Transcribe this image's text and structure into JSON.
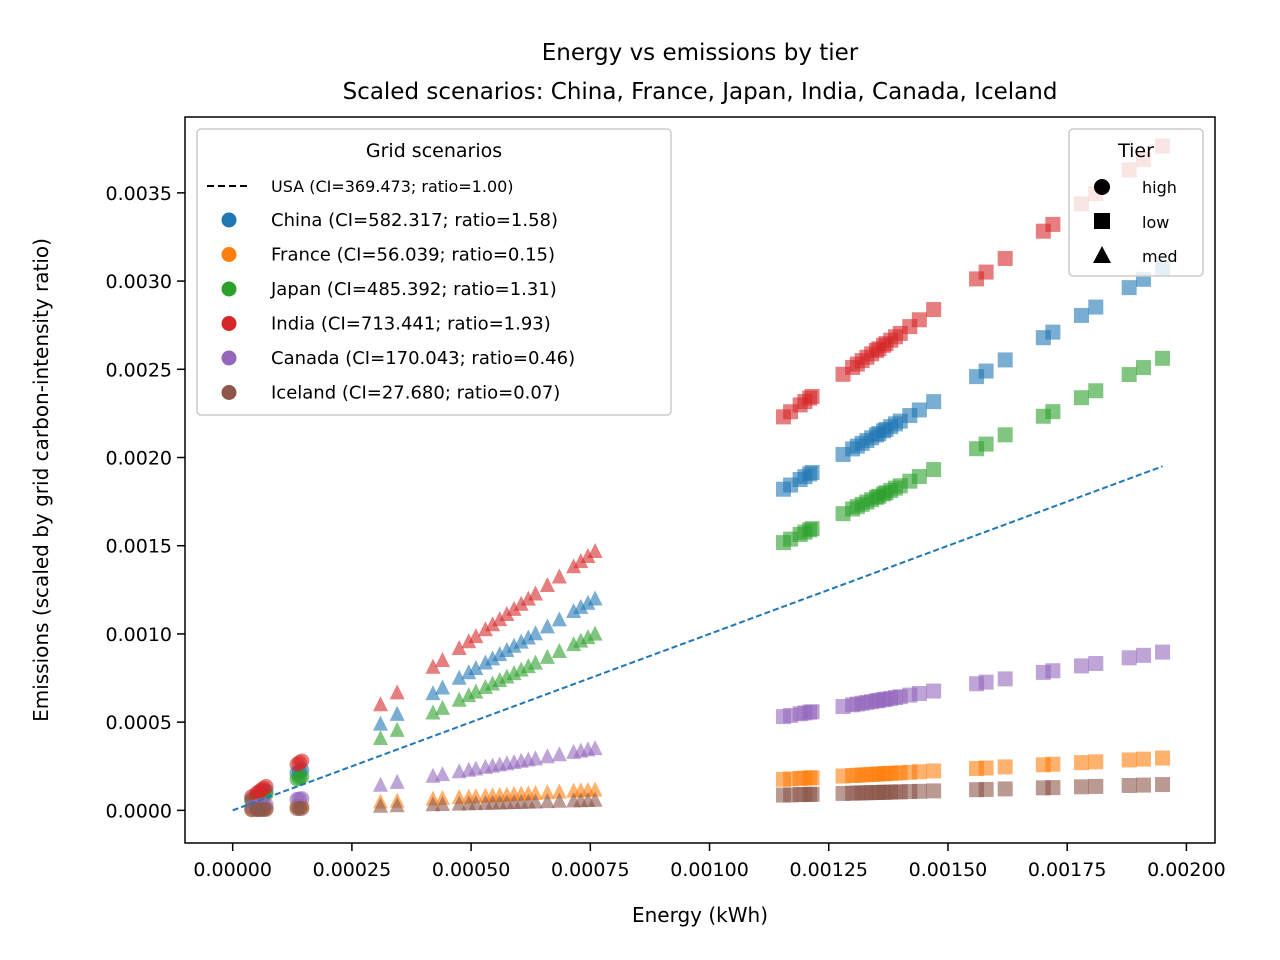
{
  "chart_data": {
    "type": "scatter",
    "title": "Energy vs emissions by tier",
    "subtitle": "Scaled scenarios: China, France, Japan, India, Canada, Iceland",
    "xlabel": "Energy (kWh)",
    "ylabel": "Emissions (scaled by grid carbon-intensity ratio)",
    "xlim": [
      -0.0001,
      0.00206
    ],
    "ylim": [
      -0.000185,
      0.00393
    ],
    "xticks": [
      0.0,
      0.00025,
      0.0005,
      0.00075,
      0.001,
      0.00125,
      0.0015,
      0.00175,
      0.002
    ],
    "xtick_labels": [
      "0.00000",
      "0.00025",
      "0.00050",
      "0.00075",
      "0.00100",
      "0.00125",
      "0.00150",
      "0.00175",
      "0.00200"
    ],
    "yticks": [
      0.0,
      0.0005,
      0.001,
      0.0015,
      0.002,
      0.0025,
      0.003,
      0.0035
    ],
    "ytick_labels": [
      "0.0000",
      "0.0005",
      "0.0010",
      "0.0015",
      "0.0020",
      "0.0025",
      "0.0030",
      "0.0035"
    ],
    "baseline": {
      "name": "USA",
      "legend": "USA (CI=369.473; ratio=1.00)",
      "x": [
        0.0,
        0.00195
      ],
      "y": [
        0.0,
        0.00195
      ],
      "color": "#1f77b4",
      "style": "dashed"
    },
    "series": [
      {
        "name": "China",
        "legend": "China (CI=582.317; ratio=1.58)",
        "ratio": 1.576,
        "color": "#1f77b4"
      },
      {
        "name": "France",
        "legend": "France (CI=56.039; ratio=0.15)",
        "ratio": 0.152,
        "color": "#ff7f0e"
      },
      {
        "name": "Japan",
        "legend": "Japan (CI=485.392; ratio=1.31)",
        "ratio": 1.314,
        "color": "#2ca02c"
      },
      {
        "name": "India",
        "legend": "India (CI=713.441; ratio=1.93)",
        "ratio": 1.931,
        "color": "#d62728"
      },
      {
        "name": "Canada",
        "legend": "Canada (CI=170.043; ratio=0.46)",
        "ratio": 0.46,
        "color": "#9467bd"
      },
      {
        "name": "Iceland",
        "legend": "Iceland (CI=27.680; ratio=0.07)",
        "ratio": 0.075,
        "color": "#8c564b"
      }
    ],
    "tiers": [
      {
        "name": "high",
        "marker": "circle",
        "energy": [
          4e-05,
          5e-05,
          5.5e-05,
          6e-05,
          6.5e-05,
          7e-05,
          0.000135,
          0.00014,
          0.000145
        ]
      },
      {
        "name": "low",
        "marker": "square",
        "energy": [
          0.001155,
          0.00117,
          0.00119,
          0.0012,
          0.00121,
          0.001215,
          0.00128,
          0.0013,
          0.00131,
          0.00132,
          0.00133,
          0.00134,
          0.00135,
          0.001355,
          0.001365,
          0.00137,
          0.00138,
          0.00139,
          0.0014,
          0.00142,
          0.00144,
          0.00147,
          0.00156,
          0.00158,
          0.00162,
          0.0017,
          0.00172,
          0.00178,
          0.00181,
          0.00188,
          0.00191,
          0.00195
        ]
      },
      {
        "name": "med",
        "marker": "triangle",
        "energy": [
          0.00031,
          0.000345,
          0.00042,
          0.00044,
          0.000475,
          0.000495,
          0.00051,
          0.00053,
          0.000545,
          0.00056,
          0.000575,
          0.00059,
          0.000605,
          0.00062,
          0.000635,
          0.00066,
          0.000685,
          0.000715,
          0.00073,
          0.000745,
          0.00076
        ]
      }
    ],
    "legend_scenarios": {
      "title": "Grid scenarios",
      "placement": "upper-left"
    },
    "legend_tiers": {
      "title": "Tier",
      "placement": "upper-right",
      "items": [
        "high",
        "low",
        "med"
      ]
    }
  }
}
